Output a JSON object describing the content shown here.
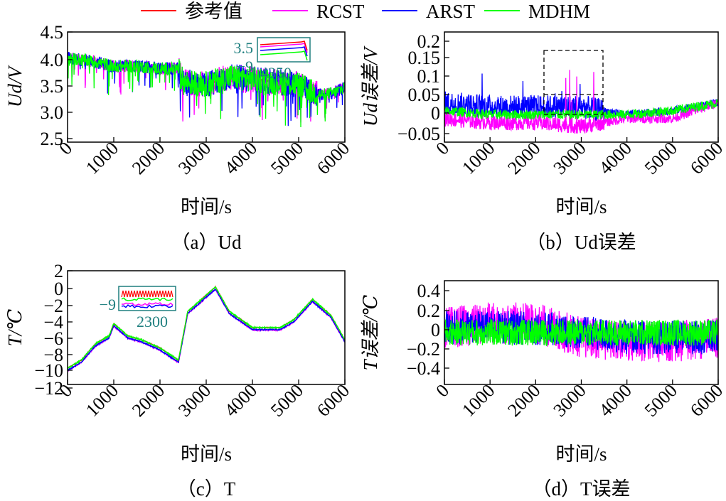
{
  "legend": {
    "items": [
      {
        "label": "参考值",
        "color": "#ff0000"
      },
      {
        "label": "RCST",
        "color": "#ff00ff"
      },
      {
        "label": "ARST",
        "color": "#0000ff"
      },
      {
        "label": "MDHM",
        "color": "#00ff00"
      }
    ]
  },
  "chart_data": [
    {
      "id": "a",
      "type": "line",
      "caption": "（a）Ud",
      "xlabel": "时间/s",
      "ylabel": "Ud/V",
      "xlim": [
        0,
        6000
      ],
      "ylim": [
        2.4,
        4.5
      ],
      "xticks": [
        "0",
        "1000",
        "2000",
        "3000",
        "4000",
        "5000",
        "6000"
      ],
      "yticks": [
        "2.5",
        "3.0",
        "3.5",
        "4.0",
        "4.5"
      ],
      "series": [
        {
          "name": "参考值",
          "x": [
            0,
            500,
            1000,
            1500,
            2000,
            2400,
            2500,
            3000,
            3500,
            4000,
            4500,
            5000,
            5300,
            5500,
            5800,
            6000
          ],
          "values": [
            4.0,
            3.95,
            3.85,
            3.85,
            3.8,
            3.8,
            3.55,
            3.5,
            3.65,
            3.6,
            3.55,
            3.5,
            3.35,
            3.3,
            3.35,
            3.45
          ]
        }
      ],
      "inset": {
        "xtick": "4350",
        "yticks": [
          "3.5",
          "−9"
        ]
      },
      "note": "dense fluctuating signals; all methods overlap the reference"
    },
    {
      "id": "b",
      "type": "line",
      "caption": "（b）Ud误差",
      "xlabel": "时间/s",
      "ylabel": "Ud误差/V",
      "xlim": [
        0,
        6000
      ],
      "ylim": [
        -0.07,
        0.21
      ],
      "xticks": [
        "0",
        "1000",
        "2000",
        "3000",
        "4000",
        "5000",
        "6000"
      ],
      "yticks": [
        "−0.05",
        "0",
        "0.05",
        "0.1",
        "0.15",
        "0.2"
      ],
      "series": [
        {
          "name": "RCST",
          "x": [
            0,
            1000,
            2000,
            3000,
            4000,
            5000,
            6000
          ],
          "values": [
            -0.01,
            -0.02,
            -0.02,
            -0.03,
            -0.01,
            -0.01,
            0.03
          ]
        },
        {
          "name": "ARST",
          "x": [
            0,
            1000,
            2000,
            3000,
            4000,
            5000,
            6000
          ],
          "values": [
            0.03,
            0.02,
            0.02,
            0.02,
            0.0,
            0.01,
            0.03
          ]
        },
        {
          "name": "MDHM",
          "x": [
            0,
            1000,
            2000,
            3000,
            4000,
            5000,
            6000
          ],
          "values": [
            0.01,
            0.0,
            0.0,
            0.0,
            0.0,
            0.01,
            0.03
          ]
        }
      ],
      "annotation": "dashed box highlights spikes between 2200 and 3500 s"
    },
    {
      "id": "c",
      "type": "line",
      "caption": "（c）T",
      "xlabel": "时间/s",
      "ylabel": "T/℃",
      "xlim": [
        0,
        6000
      ],
      "ylim": [
        -12,
        2
      ],
      "xticks": [
        "0",
        "1000",
        "2000",
        "3000",
        "4000",
        "5000",
        "6000"
      ],
      "yticks": [
        "−12",
        "−10",
        "−8",
        "−6",
        "−4",
        "−2",
        "0",
        "2"
      ],
      "series": [
        {
          "name": "参考值",
          "x": [
            0,
            300,
            600,
            900,
            1000,
            1300,
            1600,
            2000,
            2400,
            2600,
            3000,
            3200,
            3500,
            4000,
            4300,
            4600,
            4900,
            5300,
            5700,
            6000
          ],
          "values": [
            -10,
            -9,
            -7,
            -6,
            -4.5,
            -6,
            -6.5,
            -7.5,
            -9,
            -3,
            -1,
            0,
            -3,
            -5,
            -5,
            -5,
            -4,
            -1.5,
            -3.5,
            -6.5
          ]
        }
      ],
      "inset": {
        "xtick": "2300",
        "yticks": [
          "−9"
        ]
      }
    },
    {
      "id": "d",
      "type": "line",
      "caption": "（d）T误差",
      "xlabel": "时间/s",
      "ylabel": "T误差/℃",
      "xlim": [
        0,
        6000
      ],
      "ylim": [
        -0.55,
        0.55
      ],
      "xticks": [
        "0",
        "1000",
        "2000",
        "3000",
        "4000",
        "5000",
        "6000"
      ],
      "yticks": [
        "−0.4",
        "−0.2",
        "0",
        "0.2",
        "0.4"
      ],
      "series": [
        {
          "name": "RCST",
          "x": [
            0,
            1000,
            2000,
            3000,
            4000,
            5000,
            6000
          ],
          "values": [
            0.05,
            0.1,
            0.1,
            -0.05,
            -0.1,
            -0.1,
            -0.05
          ]
        },
        {
          "name": "ARST",
          "x": [
            0,
            1000,
            2000,
            3000,
            4000,
            5000,
            6000
          ],
          "values": [
            0.05,
            0.05,
            0.05,
            0.0,
            -0.05,
            -0.05,
            -0.05
          ]
        },
        {
          "name": "MDHM",
          "x": [
            0,
            1000,
            2000,
            3000,
            4000,
            5000,
            6000
          ],
          "values": [
            0.0,
            0.0,
            0.0,
            0.0,
            0.0,
            0.0,
            0.0
          ]
        }
      ]
    }
  ]
}
